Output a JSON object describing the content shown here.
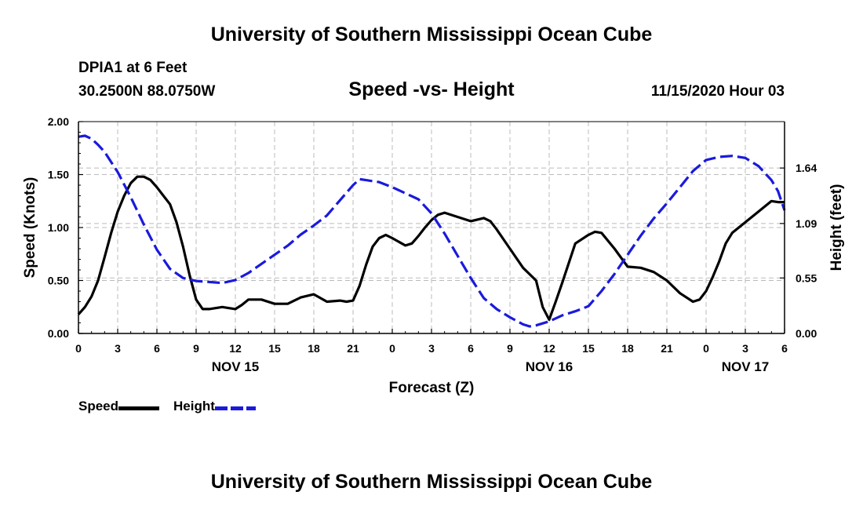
{
  "header": {
    "title_top": "University of Southern Mississippi Ocean Cube",
    "title_bottom": "University of Southern Mississippi Ocean Cube",
    "station": "DPIA1 at 6 Feet",
    "location": "30.2500N 88.0750W",
    "chart_title": "Speed -vs- Height",
    "datetime": "11/15/2020 Hour 03"
  },
  "legend": {
    "speed_label": "Speed",
    "height_label": "Height"
  },
  "colors": {
    "speed": "#000000",
    "height": "#1a1adc",
    "grid": "#bbbbbb"
  },
  "chart_data": {
    "type": "line",
    "title": "Speed -vs- Height",
    "xlabel": "Forecast (Z)",
    "ylabel": "Speed (Knots)",
    "y2label": "Height (feet)",
    "x_range": [
      0,
      54
    ],
    "x_ticks": [
      0,
      3,
      6,
      9,
      12,
      15,
      18,
      21,
      24,
      27,
      30,
      33,
      36,
      39,
      42,
      45,
      48,
      51,
      54
    ],
    "x_tick_labels": [
      "0",
      "3",
      "6",
      "9",
      "12",
      "15",
      "18",
      "21",
      "0",
      "3",
      "6",
      "9",
      "12",
      "15",
      "18",
      "21",
      "0",
      "3",
      "6"
    ],
    "date_labels": [
      {
        "x": 12,
        "label": "NOV 15"
      },
      {
        "x": 36,
        "label": "NOV 16"
      },
      {
        "x": 51,
        "label": "NOV 17"
      }
    ],
    "ylim": [
      0,
      2.0
    ],
    "y_ticks": [
      0.0,
      0.5,
      1.0,
      1.5,
      2.0
    ],
    "y_tick_labels": [
      "0.00",
      "0.50",
      "1.00",
      "1.50",
      "2.00"
    ],
    "y2lim": [
      0,
      2.1
    ],
    "y2_ticks": [
      0.0,
      0.55,
      1.09,
      1.64
    ],
    "y2_tick_labels": [
      "0.00",
      "0.55",
      "1.09",
      "1.64"
    ],
    "series": [
      {
        "name": "Speed",
        "axis": "left",
        "style": "solid",
        "points": [
          [
            0,
            0.18
          ],
          [
            0.5,
            0.25
          ],
          [
            1,
            0.35
          ],
          [
            1.5,
            0.5
          ],
          [
            2,
            0.72
          ],
          [
            2.5,
            0.95
          ],
          [
            3,
            1.15
          ],
          [
            3.5,
            1.3
          ],
          [
            4,
            1.42
          ],
          [
            4.5,
            1.48
          ],
          [
            5,
            1.48
          ],
          [
            5.5,
            1.45
          ],
          [
            6,
            1.38
          ],
          [
            6.5,
            1.3
          ],
          [
            7,
            1.22
          ],
          [
            7.5,
            1.05
          ],
          [
            8,
            0.82
          ],
          [
            8.5,
            0.55
          ],
          [
            9,
            0.32
          ],
          [
            9.5,
            0.23
          ],
          [
            10,
            0.23
          ],
          [
            11,
            0.25
          ],
          [
            12,
            0.23
          ],
          [
            12.5,
            0.27
          ],
          [
            13,
            0.32
          ],
          [
            14,
            0.32
          ],
          [
            15,
            0.28
          ],
          [
            16,
            0.28
          ],
          [
            17,
            0.34
          ],
          [
            18,
            0.37
          ],
          [
            19,
            0.3
          ],
          [
            20,
            0.31
          ],
          [
            20.5,
            0.3
          ],
          [
            21,
            0.31
          ],
          [
            21.5,
            0.45
          ],
          [
            22,
            0.65
          ],
          [
            22.5,
            0.82
          ],
          [
            23,
            0.9
          ],
          [
            23.5,
            0.93
          ],
          [
            24,
            0.9
          ],
          [
            25,
            0.83
          ],
          [
            25.5,
            0.85
          ],
          [
            26,
            0.92
          ],
          [
            26.5,
            1.0
          ],
          [
            27,
            1.07
          ],
          [
            27.5,
            1.12
          ],
          [
            28,
            1.14
          ],
          [
            29,
            1.1
          ],
          [
            30,
            1.06
          ],
          [
            31,
            1.09
          ],
          [
            31.5,
            1.06
          ],
          [
            32,
            0.98
          ],
          [
            33,
            0.8
          ],
          [
            34,
            0.62
          ],
          [
            35,
            0.5
          ],
          [
            35.5,
            0.25
          ],
          [
            36,
            0.13
          ],
          [
            36.5,
            0.3
          ],
          [
            37,
            0.48
          ],
          [
            38,
            0.85
          ],
          [
            39,
            0.93
          ],
          [
            39.5,
            0.96
          ],
          [
            40,
            0.95
          ],
          [
            41,
            0.8
          ],
          [
            42,
            0.63
          ],
          [
            43,
            0.62
          ],
          [
            44,
            0.58
          ],
          [
            45,
            0.5
          ],
          [
            46,
            0.38
          ],
          [
            47,
            0.3
          ],
          [
            47.5,
            0.32
          ],
          [
            48,
            0.4
          ],
          [
            48.5,
            0.53
          ],
          [
            49,
            0.68
          ],
          [
            49.5,
            0.85
          ],
          [
            50,
            0.95
          ],
          [
            51,
            1.05
          ],
          [
            52,
            1.15
          ],
          [
            53,
            1.25
          ],
          [
            53.5,
            1.24
          ],
          [
            54,
            1.24
          ]
        ]
      },
      {
        "name": "Height",
        "axis": "right",
        "style": "dashed",
        "points": [
          [
            0,
            1.95
          ],
          [
            0.5,
            1.96
          ],
          [
            1,
            1.93
          ],
          [
            1.5,
            1.87
          ],
          [
            2,
            1.8
          ],
          [
            3,
            1.6
          ],
          [
            4,
            1.35
          ],
          [
            5,
            1.08
          ],
          [
            6,
            0.83
          ],
          [
            7,
            0.64
          ],
          [
            8,
            0.55
          ],
          [
            9,
            0.52
          ],
          [
            10,
            0.51
          ],
          [
            11,
            0.5
          ],
          [
            12,
            0.53
          ],
          [
            13,
            0.6
          ],
          [
            14,
            0.69
          ],
          [
            15,
            0.78
          ],
          [
            16,
            0.87
          ],
          [
            17,
            0.98
          ],
          [
            18,
            1.07
          ],
          [
            19,
            1.17
          ],
          [
            20,
            1.32
          ],
          [
            21,
            1.47
          ],
          [
            21.5,
            1.53
          ],
          [
            22,
            1.52
          ],
          [
            23,
            1.5
          ],
          [
            24,
            1.45
          ],
          [
            25,
            1.39
          ],
          [
            26,
            1.33
          ],
          [
            27,
            1.19
          ],
          [
            28,
            0.99
          ],
          [
            29,
            0.77
          ],
          [
            30,
            0.55
          ],
          [
            31,
            0.35
          ],
          [
            32,
            0.24
          ],
          [
            33,
            0.16
          ],
          [
            34,
            0.09
          ],
          [
            34.5,
            0.07
          ],
          [
            35,
            0.08
          ],
          [
            36,
            0.12
          ],
          [
            37,
            0.18
          ],
          [
            38,
            0.22
          ],
          [
            39,
            0.27
          ],
          [
            40,
            0.42
          ],
          [
            41,
            0.59
          ],
          [
            42,
            0.78
          ],
          [
            43,
            0.97
          ],
          [
            44,
            1.14
          ],
          [
            45,
            1.29
          ],
          [
            46,
            1.45
          ],
          [
            47,
            1.61
          ],
          [
            48,
            1.72
          ],
          [
            49,
            1.75
          ],
          [
            50,
            1.76
          ],
          [
            51,
            1.74
          ],
          [
            52,
            1.66
          ],
          [
            53,
            1.52
          ],
          [
            53.5,
            1.41
          ],
          [
            54,
            1.22
          ]
        ]
      }
    ]
  }
}
